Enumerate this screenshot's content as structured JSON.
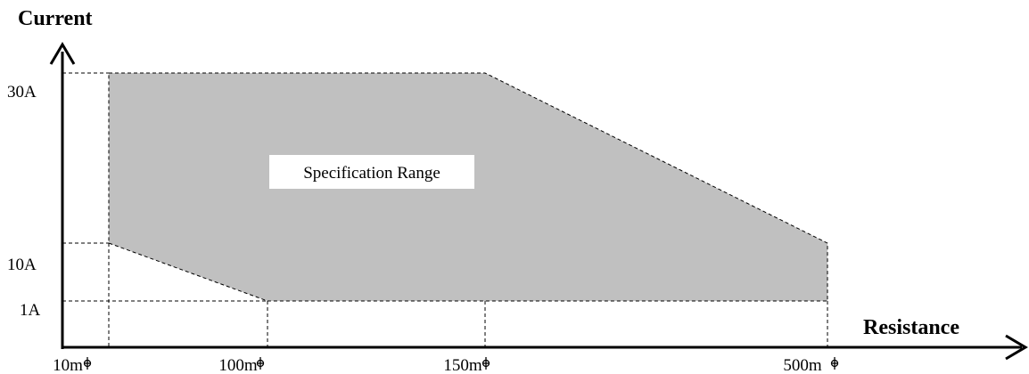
{
  "chart_data": {
    "type": "area",
    "xlabel": "Resistance",
    "ylabel": "Current",
    "x_tick_labels": [
      "10m",
      "100m",
      "150m",
      "500m"
    ],
    "y_tick_labels": [
      "1A",
      "10A",
      "30A"
    ],
    "x_unit_icon": "ohm-symbol-icon",
    "region": {
      "label": "Specification Range",
      "fill_color": "#c0c0c0",
      "outline": "dashed",
      "boundary": [
        {
          "resistance": "10m",
          "current": "30A"
        },
        {
          "resistance": "150m",
          "current": "30A"
        },
        {
          "resistance": "500m",
          "current": "10A"
        },
        {
          "resistance": "500m",
          "current": "1A"
        },
        {
          "resistance": "100m",
          "current": "1A"
        },
        {
          "resistance": "10m",
          "current": "10A"
        }
      ]
    },
    "grid": false,
    "legend": "none"
  }
}
